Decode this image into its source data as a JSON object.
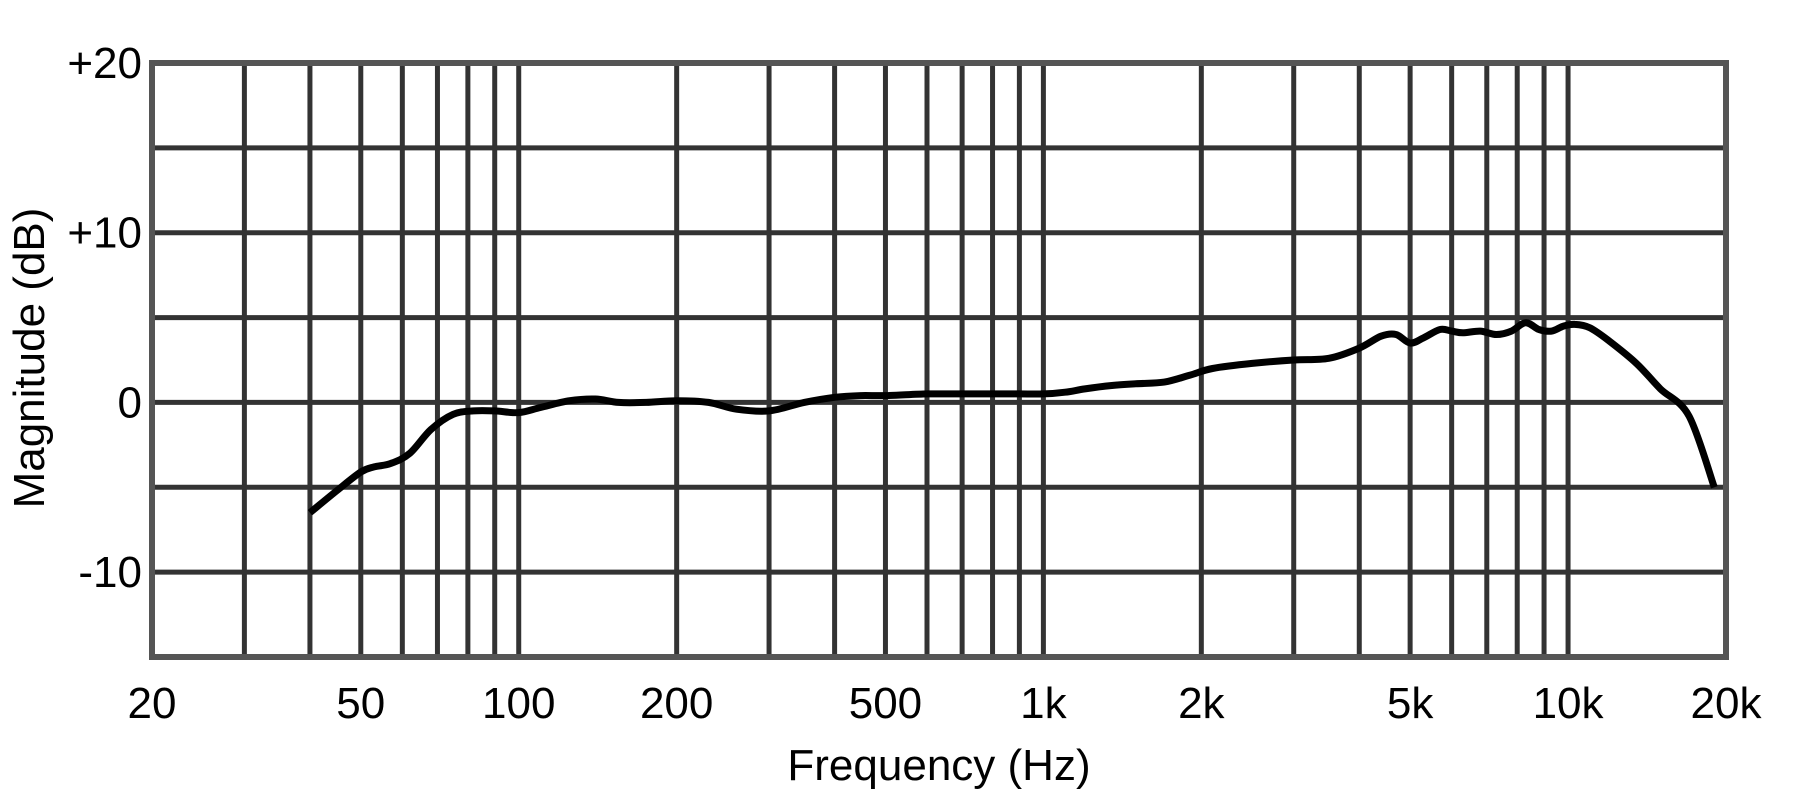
{
  "chart_data": {
    "type": "line",
    "title": "",
    "xlabel": "Frequency (Hz)",
    "ylabel": "Magnitude (dB)",
    "x_scale": "log",
    "xlim": [
      20,
      20000
    ],
    "ylim": [
      -15,
      20
    ],
    "grid": true,
    "x_tick_values": [
      20,
      50,
      100,
      200,
      500,
      1000,
      2000,
      5000,
      10000,
      20000
    ],
    "x_tick_labels": [
      "20",
      "50",
      "100",
      "200",
      "500",
      "1k",
      "2k",
      "5k",
      "10k",
      "20k"
    ],
    "x_minor_grid": [
      30,
      40,
      60,
      70,
      80,
      90,
      300,
      400,
      600,
      700,
      800,
      900,
      3000,
      4000,
      6000,
      7000,
      8000,
      9000
    ],
    "y_grid": [
      -10,
      -5,
      0,
      5,
      10,
      15
    ],
    "y_tick_values": [
      20,
      10,
      0,
      -10
    ],
    "y_tick_labels": [
      "+20",
      "+10",
      "0",
      "-10"
    ],
    "series": [
      {
        "color": "#000000",
        "x": [
          40,
          45,
          50,
          53,
          57,
          62,
          68,
          75,
          82,
          90,
          100,
          110,
          125,
          140,
          155,
          175,
          200,
          230,
          260,
          300,
          350,
          400,
          450,
          500,
          600,
          700,
          800,
          900,
          1000,
          1100,
          1200,
          1350,
          1500,
          1700,
          1900,
          2100,
          2500,
          3000,
          3500,
          4000,
          4400,
          4700,
          5000,
          5300,
          5700,
          6000,
          6300,
          6800,
          7300,
          7800,
          8300,
          8800,
          9300,
          9800,
          10300,
          11000,
          12000,
          13500,
          15000,
          17000,
          19000
        ],
        "y": [
          -6.5,
          -5.2,
          -4.1,
          -3.8,
          -3.6,
          -3.0,
          -1.6,
          -0.7,
          -0.5,
          -0.5,
          -0.6,
          -0.3,
          0.1,
          0.2,
          0.0,
          0.0,
          0.1,
          0.0,
          -0.4,
          -0.5,
          0.0,
          0.3,
          0.4,
          0.4,
          0.5,
          0.5,
          0.5,
          0.5,
          0.5,
          0.6,
          0.8,
          1.0,
          1.1,
          1.2,
          1.6,
          2.0,
          2.3,
          2.5,
          2.6,
          3.2,
          3.9,
          4.0,
          3.5,
          3.8,
          4.3,
          4.2,
          4.1,
          4.2,
          4.0,
          4.2,
          4.7,
          4.3,
          4.2,
          4.5,
          4.6,
          4.4,
          3.6,
          2.3,
          0.8,
          -0.8,
          -5.0
        ]
      }
    ]
  }
}
